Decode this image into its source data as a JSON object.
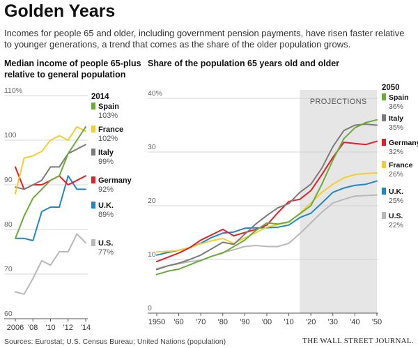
{
  "header": {
    "title": "Golden Years",
    "subtitle": "Incomes for people 65 and older, including government pension payments, have risen faster relative to younger generations, a trend that comes as the share of the older population grows."
  },
  "footer": {
    "sources": "Sources: Eurostat; U.S. Census Bureau; United Nations (population)",
    "brand": "THE WALL STREET JOURNAL."
  },
  "chart_data": [
    {
      "type": "line",
      "title": "Median income of people 65-plus relative to general population",
      "ylim": [
        60,
        110
      ],
      "y_ticks": [
        60,
        70,
        80,
        90,
        100,
        110
      ],
      "y_tick_labels": [
        "60",
        "70",
        "80",
        "90",
        "100",
        "110%"
      ],
      "x_ticks": [
        2006,
        2008,
        2010,
        2012,
        2014
      ],
      "x_tick_labels": [
        "2006",
        "'08",
        "'10",
        "'12",
        "'14"
      ],
      "legend_title": "2014",
      "x": [
        2006,
        2007,
        2008,
        2009,
        2010,
        2011,
        2012,
        2013,
        2014
      ],
      "series": [
        {
          "name": "Spain",
          "label": "103%",
          "color": "#6aab3a",
          "values": [
            78,
            83,
            87,
            89,
            91,
            92,
            97,
            100,
            103
          ]
        },
        {
          "name": "France",
          "label": "102%",
          "color": "#f2cf2e",
          "values": [
            88,
            96,
            96.5,
            97.5,
            100,
            101,
            100,
            103,
            102
          ]
        },
        {
          "name": "Italy",
          "label": "99%",
          "color": "#7b7b7b",
          "values": [
            89.5,
            89,
            90,
            91,
            94,
            94,
            97,
            98,
            99
          ]
        },
        {
          "name": "Germany",
          "label": "92%",
          "color": "#e32027",
          "values": [
            94,
            89,
            90,
            90,
            91,
            92,
            90,
            91,
            92
          ]
        },
        {
          "name": "U.K.",
          "label": "89%",
          "color": "#1f87c4",
          "values": [
            78,
            78,
            77.5,
            84,
            85,
            85,
            92,
            89,
            89
          ]
        },
        {
          "name": "U.S.",
          "label": "77%",
          "color": "#b8b8b8",
          "values": [
            66,
            65.5,
            69,
            73,
            72,
            75,
            75,
            79,
            77
          ]
        }
      ]
    },
    {
      "type": "line",
      "title": "Share of the population 65 years old and older",
      "ylim": [
        0,
        40
      ],
      "y_ticks": [
        0,
        10,
        20,
        30,
        40
      ],
      "y_tick_labels": [
        "0",
        "10",
        "20",
        "30",
        "40%"
      ],
      "x_ticks": [
        1950,
        1960,
        1970,
        1980,
        1990,
        2000,
        2010,
        2020,
        2030,
        2040,
        2050
      ],
      "x_tick_labels": [
        "1950",
        "'60",
        "'70",
        "'80",
        "'90",
        "'00",
        "'10",
        "'20",
        "'30",
        "'40",
        "'50"
      ],
      "projection_start": 2015,
      "projection_end": 2050,
      "projection_label": "PROJECTIONS",
      "legend_title": "2050",
      "x": [
        1950,
        1955,
        1960,
        1965,
        1970,
        1975,
        1980,
        1985,
        1990,
        1995,
        2000,
        2005,
        2010,
        2015,
        2020,
        2025,
        2030,
        2035,
        2040,
        2045,
        2050
      ],
      "series": [
        {
          "name": "Spain",
          "label": "36%",
          "color": "#6aab3a",
          "values": [
            7.2,
            7.8,
            8.2,
            9.0,
            9.8,
            10.6,
            11.2,
            12.4,
            13.6,
            15.4,
            16.8,
            16.6,
            17.0,
            18.5,
            20.0,
            24.0,
            28.5,
            32.5,
            34.5,
            35.5,
            36.0
          ]
        },
        {
          "name": "Italy",
          "label": "35%",
          "color": "#7b7b7b",
          "values": [
            8.1,
            8.8,
            9.3,
            10.0,
            10.8,
            12.0,
            13.2,
            12.8,
            14.7,
            16.6,
            18.2,
            19.6,
            20.4,
            22.5,
            24.0,
            27.0,
            31.0,
            34.0,
            35.0,
            35.2,
            35.0
          ]
        },
        {
          "name": "Germany",
          "label": "32%",
          "color": "#e32027",
          "values": [
            9.6,
            10.4,
            11.2,
            12.2,
            13.6,
            14.6,
            15.6,
            14.4,
            15.0,
            15.6,
            16.4,
            18.7,
            20.8,
            21.2,
            22.8,
            25.8,
            29.0,
            31.8,
            31.6,
            31.4,
            32.0
          ]
        },
        {
          "name": "France",
          "label": "26%",
          "color": "#f2cf2e",
          "values": [
            11.4,
            11.5,
            11.7,
            12.2,
            12.9,
            13.5,
            13.9,
            13.0,
            14.0,
            15.0,
            16.0,
            16.5,
            16.9,
            18.6,
            20.5,
            22.5,
            24.0,
            25.2,
            25.8,
            26.0,
            26.1
          ]
        },
        {
          "name": "U.K.",
          "label": "25%",
          "color": "#1f87c4",
          "values": [
            10.8,
            11.3,
            11.7,
            12.2,
            13.0,
            14.1,
            14.9,
            15.1,
            15.8,
            15.9,
            15.9,
            16.0,
            16.4,
            17.8,
            18.6,
            20.5,
            22.5,
            23.3,
            23.8,
            24.0,
            24.6
          ]
        },
        {
          "name": "U.S.",
          "label": "22%",
          "color": "#b8b8b8",
          "values": [
            8.3,
            8.8,
            9.2,
            9.6,
            9.8,
            10.6,
            11.3,
            11.8,
            12.4,
            12.6,
            12.4,
            12.4,
            13.0,
            14.8,
            16.8,
            18.8,
            20.5,
            21.2,
            21.8,
            21.9,
            22.0
          ]
        }
      ]
    }
  ]
}
